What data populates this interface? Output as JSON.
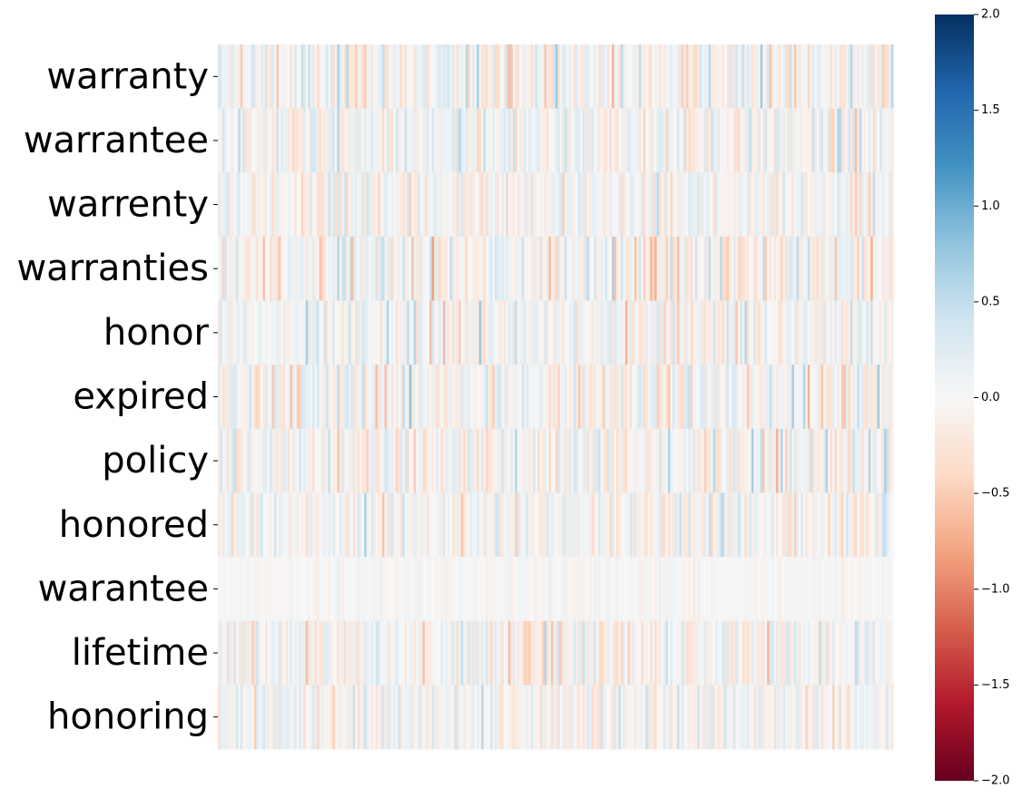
{
  "chart_data": {
    "type": "heatmap",
    "title": "",
    "xlabel": "",
    "ylabel": "",
    "rows": [
      "warranty",
      "warrantee",
      "warrenty",
      "warranties",
      "honor",
      "expired",
      "policy",
      "honored",
      "warantee",
      "lifetime",
      "honoring"
    ],
    "columns_count": 300,
    "x_tick_labels": [],
    "color_scale": {
      "colormap": "RdBu",
      "vmin": -2.0,
      "vmax": 2.0,
      "ticks": [
        2.0,
        1.5,
        1.0,
        0.5,
        0.0,
        -0.5,
        -1.0,
        -1.5,
        -2.0
      ],
      "tick_labels": [
        "2.0",
        "1.5",
        "1.0",
        "0.5",
        "0.0",
        "−0.5",
        "−1.0",
        "−1.5",
        "−2.0"
      ]
    },
    "row_value_spread": [
      0.45,
      0.4,
      0.35,
      0.45,
      0.4,
      0.45,
      0.45,
      0.35,
      0.12,
      0.4,
      0.35
    ],
    "grid": false,
    "legend": "colorbar-right"
  }
}
